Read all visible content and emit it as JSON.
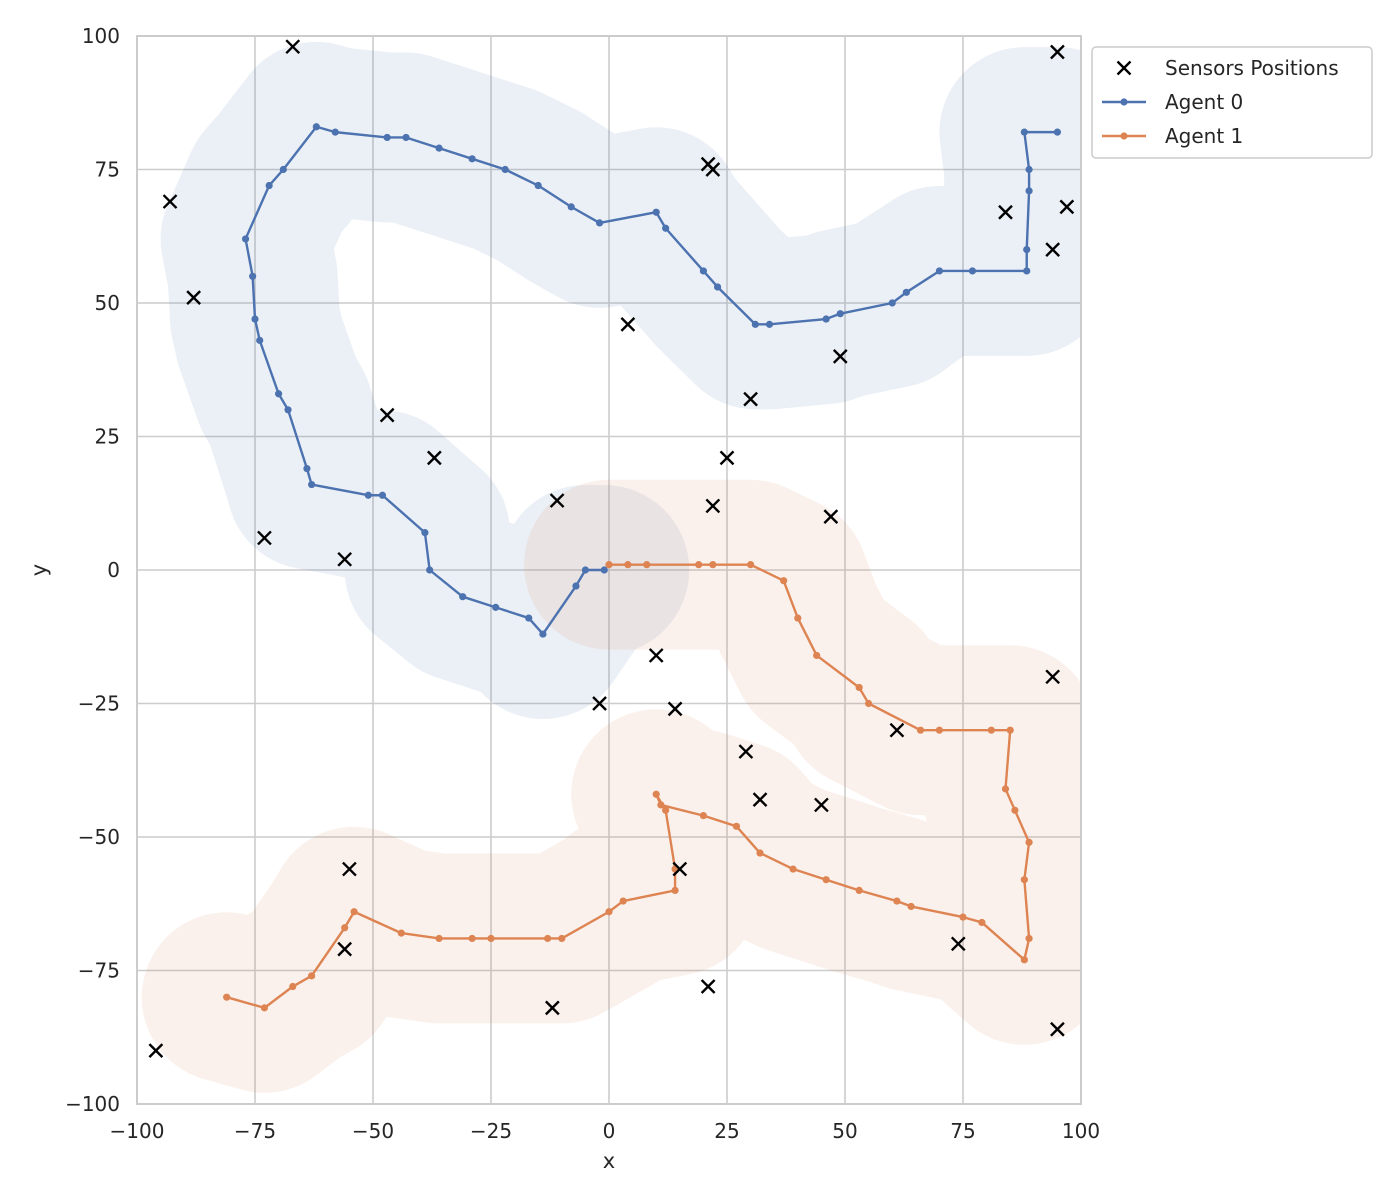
{
  "chart_data": {
    "type": "line",
    "title": "",
    "xlabel": "x",
    "ylabel": "y",
    "xlim": [
      -100,
      100
    ],
    "ylim": [
      -100,
      100
    ],
    "xticks": [
      -100,
      -75,
      -50,
      -25,
      0,
      25,
      50,
      75,
      100
    ],
    "yticks": [
      -100,
      -75,
      -50,
      -25,
      0,
      25,
      50,
      75,
      100
    ],
    "grid": true,
    "legend_position": "outside-top-right",
    "coverage_radius": 18,
    "sensors": {
      "name": "Sensors Positions",
      "marker": "x",
      "color": "#000000",
      "points": [
        [
          -67,
          98
        ],
        [
          -93,
          69
        ],
        [
          -88,
          51
        ],
        [
          -47,
          29
        ],
        [
          -37,
          21
        ],
        [
          -73,
          6
        ],
        [
          -56,
          2
        ],
        [
          -11,
          13
        ],
        [
          4,
          46
        ],
        [
          21,
          76
        ],
        [
          22,
          75
        ],
        [
          30,
          32
        ],
        [
          25,
          21
        ],
        [
          22,
          12
        ],
        [
          47,
          10
        ],
        [
          49,
          40
        ],
        [
          84,
          67
        ],
        [
          94,
          60
        ],
        [
          97,
          68
        ],
        [
          95,
          97
        ],
        [
          10,
          -16
        ],
        [
          -2,
          -25
        ],
        [
          14,
          -26
        ],
        [
          29,
          -34
        ],
        [
          32,
          -43
        ],
        [
          45,
          -44
        ],
        [
          61,
          -30
        ],
        [
          94,
          -20
        ],
        [
          -55,
          -56
        ],
        [
          -56,
          -71
        ],
        [
          -12,
          -82
        ],
        [
          21,
          -78
        ],
        [
          15,
          -56
        ],
        [
          74,
          -70
        ],
        [
          95,
          -86
        ],
        [
          -96,
          -90
        ]
      ]
    },
    "series": [
      {
        "name": "Agent 0",
        "color": "#4c72b0",
        "points": [
          [
            95,
            82
          ],
          [
            88,
            82
          ],
          [
            89,
            75
          ],
          [
            89,
            71
          ],
          [
            88.5,
            60
          ],
          [
            88.5,
            56
          ],
          [
            77,
            56
          ],
          [
            70,
            56
          ],
          [
            63,
            52
          ],
          [
            60,
            50
          ],
          [
            49,
            48
          ],
          [
            46,
            47
          ],
          [
            34,
            46
          ],
          [
            31,
            46
          ],
          [
            23,
            53
          ],
          [
            20,
            56
          ],
          [
            12,
            64
          ],
          [
            10,
            67
          ],
          [
            -2,
            65
          ],
          [
            -8,
            68
          ],
          [
            -15,
            72
          ],
          [
            -22,
            75
          ],
          [
            -29,
            77
          ],
          [
            -36,
            79
          ],
          [
            -43,
            81
          ],
          [
            -47,
            81
          ],
          [
            -58,
            82
          ],
          [
            -62,
            83
          ],
          [
            -69,
            75
          ],
          [
            -72,
            72
          ],
          [
            -77,
            62
          ],
          [
            -75.5,
            55
          ],
          [
            -75,
            47
          ],
          [
            -74,
            43
          ],
          [
            -70,
            33
          ],
          [
            -68,
            30
          ],
          [
            -64,
            19
          ],
          [
            -63,
            16
          ],
          [
            -51,
            14
          ],
          [
            -48,
            14
          ],
          [
            -39,
            7
          ],
          [
            -38,
            0
          ],
          [
            -31,
            -5
          ],
          [
            -24,
            -7
          ],
          [
            -17,
            -9
          ],
          [
            -14,
            -12
          ],
          [
            -7,
            -3
          ],
          [
            -5,
            0
          ],
          [
            -1,
            0
          ]
        ]
      },
      {
        "name": "Agent 1",
        "color": "#dd8452",
        "points": [
          [
            0,
            1
          ],
          [
            4,
            1
          ],
          [
            8,
            1
          ],
          [
            19,
            1
          ],
          [
            22,
            1
          ],
          [
            30,
            1
          ],
          [
            37,
            -2
          ],
          [
            40,
            -9
          ],
          [
            44,
            -16
          ],
          [
            53,
            -22
          ],
          [
            55,
            -25
          ],
          [
            66,
            -30
          ],
          [
            70,
            -30
          ],
          [
            81,
            -30
          ],
          [
            85,
            -30
          ],
          [
            84,
            -41
          ],
          [
            86,
            -45
          ],
          [
            89,
            -51
          ],
          [
            88,
            -58
          ],
          [
            89,
            -69
          ],
          [
            88,
            -73
          ],
          [
            79,
            -66
          ],
          [
            75,
            -65
          ],
          [
            64,
            -63
          ],
          [
            61,
            -62
          ],
          [
            53,
            -60
          ],
          [
            46,
            -58
          ],
          [
            39,
            -56
          ],
          [
            32,
            -53
          ],
          [
            27,
            -48
          ],
          [
            20,
            -46
          ],
          [
            11,
            -44
          ],
          [
            10,
            -42
          ],
          [
            12,
            -45
          ],
          [
            14,
            -56
          ],
          [
            14,
            -60
          ],
          [
            3,
            -62
          ],
          [
            0,
            -64
          ],
          [
            -10,
            -69
          ],
          [
            -13,
            -69
          ],
          [
            -25,
            -69
          ],
          [
            -29,
            -69
          ],
          [
            -36,
            -69
          ],
          [
            -44,
            -68
          ],
          [
            -54,
            -64
          ],
          [
            -56,
            -67
          ],
          [
            -63,
            -76
          ],
          [
            -67,
            -78
          ],
          [
            -73,
            -82
          ],
          [
            -81,
            -80
          ]
        ]
      }
    ]
  }
}
